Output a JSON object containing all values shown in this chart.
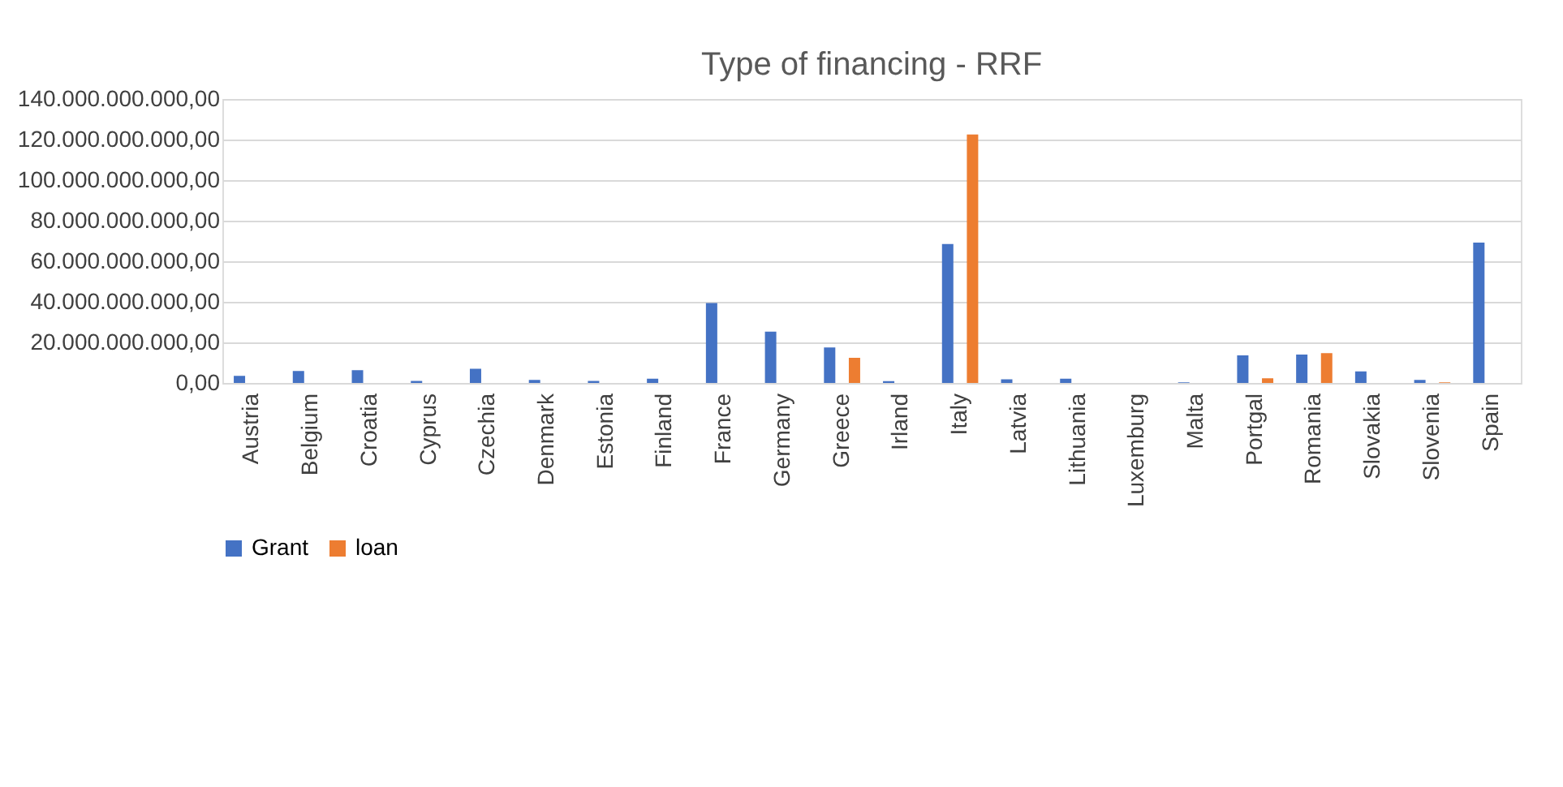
{
  "chart_data": {
    "type": "bar",
    "title": "Type of financing - RRF",
    "categories": [
      "Austria",
      "Belgium",
      "Croatia",
      "Cyprus",
      "Czechia",
      "Denmark",
      "Estonia",
      "Finland",
      "France",
      "Germany",
      "Greece",
      "Irland",
      "Italy",
      "Latvia",
      "Lithuania",
      "Luxemburg",
      "Malta",
      "Portgal",
      "Romania",
      "Slovakia",
      "Slovenia",
      "Spain"
    ],
    "series": [
      {
        "name": "Grant",
        "color": "#4472c4",
        "values": [
          3500000000,
          5900000000,
          6300000000,
          1000000000,
          7000000000,
          1500000000,
          1000000000,
          2100000000,
          39400000000,
          25300000000,
          17500000000,
          900000000,
          68500000000,
          1800000000,
          2100000000,
          null,
          300000000,
          13600000000,
          14000000000,
          5700000000,
          1500000000,
          69200000000
        ]
      },
      {
        "name": "loan",
        "color": "#ed7d31",
        "values": [
          null,
          null,
          null,
          null,
          null,
          null,
          null,
          null,
          null,
          null,
          12400000000,
          null,
          122500000000,
          null,
          null,
          null,
          null,
          2300000000,
          14700000000,
          null,
          300000000,
          null
        ]
      }
    ],
    "ylim": [
      0,
      140000000000
    ],
    "yticks": [
      {
        "value": 0,
        "label": "0,00"
      },
      {
        "value": 20000000000,
        "label": "20.000.000.000,00"
      },
      {
        "value": 40000000000,
        "label": "40.000.000.000,00"
      },
      {
        "value": 60000000000,
        "label": "60.000.000.000,00"
      },
      {
        "value": 80000000000,
        "label": "80.000.000.000,00"
      },
      {
        "value": 100000000000,
        "label": "100.000.000.000,00"
      },
      {
        "value": 120000000000,
        "label": "120.000.000.000,00"
      },
      {
        "value": 140000000000,
        "label": "140.000.000.000,00"
      }
    ],
    "grid": "y",
    "legend": "bottom"
  }
}
